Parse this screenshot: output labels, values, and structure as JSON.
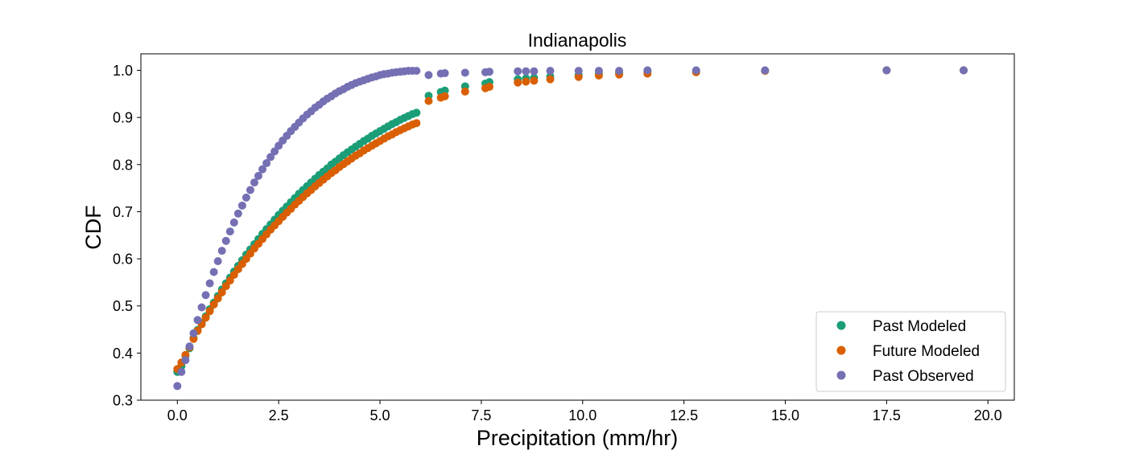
{
  "chart_data": {
    "type": "scatter",
    "title": "Indianapolis",
    "xlabel": "Precipitation (mm/hr)",
    "ylabel": "CDF",
    "xlim": [
      -0.9,
      20.65
    ],
    "ylim": [
      0.3,
      1.035
    ],
    "xticks": [
      0.0,
      2.5,
      5.0,
      7.5,
      10.0,
      12.5,
      15.0,
      17.5,
      20.0
    ],
    "xtick_labels": [
      "0.0",
      "2.5",
      "5.0",
      "7.5",
      "10.0",
      "12.5",
      "15.0",
      "17.5",
      "20.0"
    ],
    "yticks": [
      0.3,
      0.4,
      0.5,
      0.6,
      0.7,
      0.8,
      0.9,
      1.0
    ],
    "ytick_labels": [
      "0.3",
      "0.4",
      "0.5",
      "0.6",
      "0.7",
      "0.8",
      "0.9",
      "1.0"
    ],
    "grid": false,
    "legend_position": "lower-right",
    "series": [
      {
        "name": "Past Modeled",
        "color": "#1b9e77",
        "points": [
          [
            0.0,
            0.36
          ],
          [
            0.1,
            0.372
          ],
          [
            0.2,
            0.394
          ],
          [
            0.3,
            0.41
          ],
          [
            0.4,
            0.432
          ],
          [
            0.5,
            0.449
          ],
          [
            0.6,
            0.464
          ],
          [
            0.7,
            0.478
          ],
          [
            0.8,
            0.493
          ],
          [
            0.9,
            0.507
          ],
          [
            1.0,
            0.521
          ],
          [
            1.1,
            0.535
          ],
          [
            1.2,
            0.548
          ],
          [
            1.3,
            0.56
          ],
          [
            1.4,
            0.573
          ],
          [
            1.5,
            0.585
          ],
          [
            1.6,
            0.597
          ],
          [
            1.7,
            0.609
          ],
          [
            1.8,
            0.62
          ],
          [
            1.9,
            0.631
          ],
          [
            2.0,
            0.642
          ],
          [
            2.1,
            0.653
          ],
          [
            2.2,
            0.663
          ],
          [
            2.3,
            0.673
          ],
          [
            2.4,
            0.683
          ],
          [
            2.5,
            0.693
          ],
          [
            2.6,
            0.702
          ],
          [
            2.7,
            0.711
          ],
          [
            2.8,
            0.72
          ],
          [
            2.9,
            0.729
          ],
          [
            3.0,
            0.738
          ],
          [
            3.1,
            0.746
          ],
          [
            3.2,
            0.754
          ],
          [
            3.3,
            0.762
          ],
          [
            3.4,
            0.77
          ],
          [
            3.5,
            0.778
          ],
          [
            3.6,
            0.785
          ],
          [
            3.7,
            0.792
          ],
          [
            3.8,
            0.8
          ],
          [
            3.9,
            0.806
          ],
          [
            4.0,
            0.813
          ],
          [
            4.1,
            0.82
          ],
          [
            4.2,
            0.826
          ],
          [
            4.3,
            0.832
          ],
          [
            4.4,
            0.838
          ],
          [
            4.5,
            0.844
          ],
          [
            4.6,
            0.85
          ],
          [
            4.7,
            0.855
          ],
          [
            4.8,
            0.861
          ],
          [
            4.9,
            0.866
          ],
          [
            5.0,
            0.871
          ],
          [
            5.1,
            0.876
          ],
          [
            5.2,
            0.881
          ],
          [
            5.3,
            0.886
          ],
          [
            5.4,
            0.89
          ],
          [
            5.5,
            0.895
          ],
          [
            5.6,
            0.899
          ],
          [
            5.7,
            0.903
          ],
          [
            5.8,
            0.907
          ],
          [
            5.9,
            0.91
          ],
          [
            6.2,
            0.946
          ],
          [
            6.5,
            0.954
          ],
          [
            6.6,
            0.957
          ],
          [
            7.1,
            0.966
          ],
          [
            7.6,
            0.972
          ],
          [
            7.7,
            0.975
          ],
          [
            8.4,
            0.981
          ],
          [
            8.6,
            0.983
          ],
          [
            8.8,
            0.984
          ],
          [
            9.2,
            0.987
          ],
          [
            9.9,
            0.99
          ],
          [
            10.4,
            0.993
          ],
          [
            10.9,
            0.995
          ],
          [
            11.6,
            0.997
          ],
          [
            12.8,
            0.998
          ],
          [
            14.5,
            0.999
          ],
          [
            17.5,
            1.0
          ],
          [
            19.4,
            1.0
          ]
        ]
      },
      {
        "name": "Future Modeled",
        "color": "#d95f02",
        "points": [
          [
            0.0,
            0.366
          ],
          [
            0.1,
            0.38
          ],
          [
            0.2,
            0.396
          ],
          [
            0.3,
            0.412
          ],
          [
            0.4,
            0.43
          ],
          [
            0.5,
            0.447
          ],
          [
            0.6,
            0.461
          ],
          [
            0.7,
            0.475
          ],
          [
            0.8,
            0.489
          ],
          [
            0.9,
            0.503
          ],
          [
            1.0,
            0.516
          ],
          [
            1.1,
            0.529
          ],
          [
            1.2,
            0.542
          ],
          [
            1.3,
            0.554
          ],
          [
            1.4,
            0.566
          ],
          [
            1.5,
            0.578
          ],
          [
            1.6,
            0.589
          ],
          [
            1.7,
            0.6
          ],
          [
            1.8,
            0.611
          ],
          [
            1.9,
            0.622
          ],
          [
            2.0,
            0.632
          ],
          [
            2.1,
            0.642
          ],
          [
            2.2,
            0.652
          ],
          [
            2.3,
            0.662
          ],
          [
            2.4,
            0.671
          ],
          [
            2.5,
            0.68
          ],
          [
            2.6,
            0.689
          ],
          [
            2.7,
            0.698
          ],
          [
            2.8,
            0.706
          ],
          [
            2.9,
            0.715
          ],
          [
            3.0,
            0.723
          ],
          [
            3.1,
            0.731
          ],
          [
            3.2,
            0.739
          ],
          [
            3.3,
            0.746
          ],
          [
            3.4,
            0.754
          ],
          [
            3.5,
            0.761
          ],
          [
            3.6,
            0.768
          ],
          [
            3.7,
            0.775
          ],
          [
            3.8,
            0.782
          ],
          [
            3.9,
            0.788
          ],
          [
            4.0,
            0.795
          ],
          [
            4.1,
            0.801
          ],
          [
            4.2,
            0.807
          ],
          [
            4.3,
            0.813
          ],
          [
            4.4,
            0.819
          ],
          [
            4.5,
            0.824
          ],
          [
            4.6,
            0.83
          ],
          [
            4.7,
            0.835
          ],
          [
            4.8,
            0.84
          ],
          [
            4.9,
            0.845
          ],
          [
            5.0,
            0.85
          ],
          [
            5.1,
            0.855
          ],
          [
            5.2,
            0.86
          ],
          [
            5.3,
            0.864
          ],
          [
            5.4,
            0.869
          ],
          [
            5.5,
            0.873
          ],
          [
            5.6,
            0.877
          ],
          [
            5.7,
            0.881
          ],
          [
            5.8,
            0.885
          ],
          [
            5.9,
            0.888
          ],
          [
            6.2,
            0.935
          ],
          [
            6.5,
            0.942
          ],
          [
            6.6,
            0.945
          ],
          [
            7.1,
            0.955
          ],
          [
            7.6,
            0.962
          ],
          [
            7.7,
            0.965
          ],
          [
            8.4,
            0.974
          ],
          [
            8.6,
            0.976
          ],
          [
            8.8,
            0.978
          ],
          [
            9.2,
            0.981
          ],
          [
            9.9,
            0.986
          ],
          [
            10.4,
            0.989
          ],
          [
            10.9,
            0.991
          ],
          [
            11.6,
            0.993
          ],
          [
            12.8,
            0.996
          ],
          [
            14.5,
            0.999
          ],
          [
            17.5,
            1.0
          ],
          [
            19.4,
            1.0
          ]
        ]
      },
      {
        "name": "Past Observed",
        "color": "#7570b3",
        "points": [
          [
            0.0,
            0.33
          ],
          [
            0.1,
            0.36
          ],
          [
            0.2,
            0.385
          ],
          [
            0.3,
            0.414
          ],
          [
            0.4,
            0.442
          ],
          [
            0.5,
            0.47
          ],
          [
            0.6,
            0.497
          ],
          [
            0.7,
            0.523
          ],
          [
            0.8,
            0.548
          ],
          [
            0.9,
            0.572
          ],
          [
            1.0,
            0.595
          ],
          [
            1.1,
            0.617
          ],
          [
            1.2,
            0.638
          ],
          [
            1.3,
            0.658
          ],
          [
            1.4,
            0.677
          ],
          [
            1.5,
            0.696
          ],
          [
            1.6,
            0.713
          ],
          [
            1.7,
            0.73
          ],
          [
            1.8,
            0.746
          ],
          [
            1.9,
            0.762
          ],
          [
            2.0,
            0.776
          ],
          [
            2.1,
            0.79
          ],
          [
            2.2,
            0.803
          ],
          [
            2.3,
            0.816
          ],
          [
            2.4,
            0.828
          ],
          [
            2.5,
            0.84
          ],
          [
            2.6,
            0.851
          ],
          [
            2.7,
            0.861
          ],
          [
            2.8,
            0.871
          ],
          [
            2.9,
            0.88
          ],
          [
            3.0,
            0.889
          ],
          [
            3.1,
            0.898
          ],
          [
            3.2,
            0.906
          ],
          [
            3.3,
            0.913
          ],
          [
            3.4,
            0.921
          ],
          [
            3.5,
            0.927
          ],
          [
            3.6,
            0.934
          ],
          [
            3.7,
            0.94
          ],
          [
            3.8,
            0.945
          ],
          [
            3.9,
            0.951
          ],
          [
            4.0,
            0.956
          ],
          [
            4.1,
            0.96
          ],
          [
            4.2,
            0.965
          ],
          [
            4.3,
            0.969
          ],
          [
            4.4,
            0.973
          ],
          [
            4.5,
            0.976
          ],
          [
            4.6,
            0.979
          ],
          [
            4.7,
            0.982
          ],
          [
            4.8,
            0.985
          ],
          [
            4.9,
            0.987
          ],
          [
            5.0,
            0.99
          ],
          [
            5.1,
            0.992
          ],
          [
            5.2,
            0.993
          ],
          [
            5.3,
            0.995
          ],
          [
            5.4,
            0.996
          ],
          [
            5.5,
            0.997
          ],
          [
            5.6,
            0.998
          ],
          [
            5.7,
            0.999
          ],
          [
            5.8,
            0.999
          ],
          [
            5.9,
            0.999
          ],
          [
            6.2,
            0.99
          ],
          [
            6.5,
            0.993
          ],
          [
            6.6,
            0.994
          ],
          [
            7.1,
            0.995
          ],
          [
            7.6,
            0.996
          ],
          [
            7.7,
            0.997
          ],
          [
            8.4,
            0.998
          ],
          [
            8.6,
            0.998
          ],
          [
            8.8,
            0.998
          ],
          [
            9.2,
            0.999
          ],
          [
            9.9,
            0.999
          ],
          [
            10.4,
            0.999
          ],
          [
            10.9,
            0.999
          ],
          [
            11.6,
            1.0
          ],
          [
            12.8,
            1.0
          ],
          [
            14.5,
            1.0
          ],
          [
            17.5,
            1.0
          ],
          [
            19.4,
            1.0
          ]
        ]
      }
    ]
  }
}
